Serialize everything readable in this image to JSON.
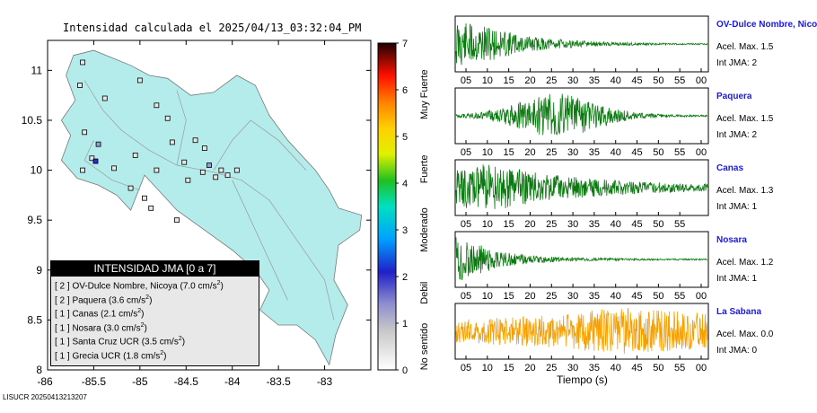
{
  "title": "Intensidad calculada el 2025/04/13_03:32:04_PM",
  "footer_id": "LISUCR 20250413213207",
  "colors": {
    "land": "#b4ecec",
    "ocean": "#ffffff",
    "trace_green": "#0b7a10",
    "trace_orange": "#f5a000",
    "station_name": "#1a1adc"
  },
  "chart_data": [
    {
      "type": "scatter",
      "name": "intensity-map",
      "title": "Intensidad calculada el 2025/04/13_03:32:04_PM",
      "xlim": [
        -86,
        -82.5
      ],
      "ylim": [
        8,
        11.3
      ],
      "x_ticks": [
        "-85.5",
        "-85",
        "-84.5",
        "-84",
        "-83.5",
        "-83"
      ],
      "y_ticks": [
        "11",
        "10.5",
        "10",
        "9.5",
        "9",
        "8.5",
        "8"
      ],
      "stations": [
        {
          "lon": -85.62,
          "lat": 11.08,
          "jma": 0
        },
        {
          "lon": -85.38,
          "lat": 10.72,
          "jma": 0
        },
        {
          "lon": -85.0,
          "lat": 10.9,
          "jma": 0
        },
        {
          "lon": -84.82,
          "lat": 10.65,
          "jma": 0
        },
        {
          "lon": -84.7,
          "lat": 10.52,
          "jma": 0
        },
        {
          "lon": -85.65,
          "lat": 10.85,
          "jma": 0
        },
        {
          "lon": -85.6,
          "lat": 10.38,
          "jma": 0
        },
        {
          "lon": -85.45,
          "lat": 10.26,
          "jma": 1
        },
        {
          "lon": -85.52,
          "lat": 10.12,
          "jma": 0
        },
        {
          "lon": -85.62,
          "lat": 10.0,
          "jma": 0
        },
        {
          "lon": -85.48,
          "lat": 10.09,
          "jma": 2
        },
        {
          "lon": -85.28,
          "lat": 10.02,
          "jma": 0
        },
        {
          "lon": -85.05,
          "lat": 10.15,
          "jma": 0
        },
        {
          "lon": -84.82,
          "lat": 10.0,
          "jma": 0
        },
        {
          "lon": -84.95,
          "lat": 9.72,
          "jma": 0
        },
        {
          "lon": -85.1,
          "lat": 9.82,
          "jma": 0
        },
        {
          "lon": -84.88,
          "lat": 9.62,
          "jma": 0
        },
        {
          "lon": -84.6,
          "lat": 9.5,
          "jma": 0
        },
        {
          "lon": -84.52,
          "lat": 10.08,
          "jma": 0
        },
        {
          "lon": -84.48,
          "lat": 9.9,
          "jma": 0
        },
        {
          "lon": -84.3,
          "lat": 10.22,
          "jma": 0
        },
        {
          "lon": -84.25,
          "lat": 10.05,
          "jma": 1
        },
        {
          "lon": -84.12,
          "lat": 10.0,
          "jma": 0
        },
        {
          "lon": -84.05,
          "lat": 9.95,
          "jma": 0
        },
        {
          "lon": -84.18,
          "lat": 9.93,
          "jma": 0
        },
        {
          "lon": -84.32,
          "lat": 9.98,
          "jma": 0
        },
        {
          "lon": -83.95,
          "lat": 10.0,
          "jma": 0
        },
        {
          "lon": -84.4,
          "lat": 10.3,
          "jma": 0
        },
        {
          "lon": -84.65,
          "lat": 10.28,
          "jma": 0
        }
      ]
    },
    {
      "type": "colorbar",
      "name": "jma-scale",
      "range": [
        0,
        7
      ],
      "ticks": [
        "0",
        "1",
        "2",
        "3",
        "4",
        "5",
        "6",
        "7"
      ],
      "categories": [
        "No sentido",
        "Debil",
        "Moderado",
        "Fuerte",
        "Muy Fuerte"
      ]
    },
    {
      "type": "line",
      "name": "seismograms",
      "xlabel": "Tiempo (s)",
      "traces": [
        {
          "station": "OV-Dulce Nombre, Nicoya",
          "acel_label": "Acel. Max. 1.5",
          "jma_label": "Int JMA: 2",
          "ticks": [
            "05",
            "10",
            "15",
            "20",
            "25",
            "30",
            "35",
            "40",
            "45",
            "50",
            "55",
            "00"
          ],
          "amplitude_envelope": [
            0.95,
            0.8,
            0.55,
            0.35,
            0.22,
            0.15,
            0.1,
            0.07,
            0.05,
            0.04,
            0.03,
            0.03
          ]
        },
        {
          "station": "Paquera",
          "acel_label": "Acel. Max. 1.5",
          "jma_label": "Int JMA: 2",
          "ticks": [
            "05",
            "10",
            "15",
            "20",
            "25",
            "30",
            "35",
            "40",
            "45",
            "50",
            "55",
            "00"
          ],
          "amplitude_envelope": [
            0.08,
            0.12,
            0.3,
            0.6,
            0.95,
            0.85,
            0.55,
            0.3,
            0.12,
            0.06,
            0.04,
            0.03
          ]
        },
        {
          "station": "Canas",
          "acel_label": "Acel. Max. 1.3",
          "jma_label": "Int JMA: 1",
          "ticks": [
            "05",
            "10",
            "15",
            "20",
            "25",
            "30",
            "35",
            "40",
            "45",
            "50",
            "55"
          ],
          "amplitude_envelope": [
            0.7,
            0.95,
            0.85,
            0.7,
            0.55,
            0.45,
            0.35,
            0.3,
            0.25,
            0.2,
            0.18,
            0.15
          ]
        },
        {
          "station": "Nosara",
          "acel_label": "Acel. Max. 1.2",
          "jma_label": "Int JMA: 1",
          "ticks": [
            "05",
            "10",
            "15",
            "20",
            "25",
            "30",
            "35",
            "40",
            "45",
            "50",
            "55",
            "00"
          ],
          "amplitude_envelope": [
            0.95,
            0.6,
            0.3,
            0.18,
            0.12,
            0.08,
            0.06,
            0.05,
            0.04,
            0.03,
            0.03,
            0.03
          ]
        },
        {
          "station": "La Sabana",
          "acel_label": "Acel. Max. 0.0",
          "jma_label": "Int JMA: 0",
          "ticks": [
            "05",
            "10",
            "15",
            "20",
            "25",
            "30",
            "35",
            "40",
            "45",
            "50",
            "55",
            "00"
          ],
          "amplitude_envelope": [
            0.45,
            0.5,
            0.55,
            0.6,
            0.65,
            0.75,
            0.85,
            0.95,
            0.9,
            0.85,
            0.8,
            0.75
          ]
        }
      ]
    }
  ],
  "legend": {
    "title": "INTENSIDAD JMA [0 a 7]",
    "rows": [
      {
        "rank": "[ 2 ]",
        "text": "OV-Dulce Nombre, Nicoya (7.0 cm/s",
        "sup": "2",
        "close": ")"
      },
      {
        "rank": "[ 2 ]",
        "text": "Paquera (3.6 cm/s",
        "sup": "2",
        "close": ")"
      },
      {
        "rank": "[ 1 ]",
        "text": "Canas (2.1 cm/s",
        "sup": "2",
        "close": ")"
      },
      {
        "rank": "[ 1 ]",
        "text": "Nosara (3.0 cm/s",
        "sup": "2",
        "close": ")"
      },
      {
        "rank": "[ 1 ]",
        "text": "Santa Cruz UCR (3.5 cm/s",
        "sup": "2",
        "close": ")"
      },
      {
        "rank": "[ 1 ]",
        "text": "Grecia UCR (1.8 cm/s",
        "sup": "2",
        "close": ")"
      }
    ]
  }
}
